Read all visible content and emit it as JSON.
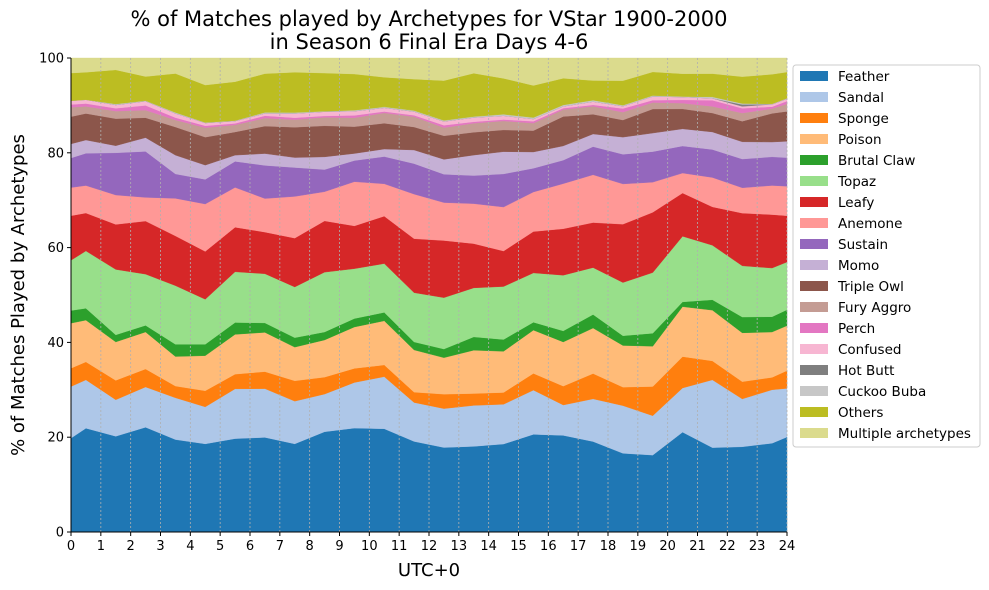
{
  "chart_data": {
    "type": "area",
    "stacked": true,
    "title_line1": "% of Matches played by Archetypes for VStar 1900-2000",
    "title_line2": "in Season 6 Final Era Days 4-6",
    "xlabel": "UTC+0",
    "ylabel": "% of Matches Played by Archetypes",
    "xlim": [
      0,
      24
    ],
    "ylim": [
      0,
      100
    ],
    "x_ticks": [
      "0",
      "1",
      "2",
      "3",
      "4",
      "5",
      "6",
      "7",
      "8",
      "9",
      "10",
      "11",
      "12",
      "13",
      "14",
      "15",
      "16",
      "17",
      "18",
      "19",
      "20",
      "21",
      "22",
      "23",
      "24"
    ],
    "y_ticks": [
      "0",
      "20",
      "40",
      "60",
      "80",
      "100"
    ],
    "grid": "vertical dotted",
    "legend_position": "right, outside plot",
    "x": [
      0,
      0.5,
      1.5,
      2.5,
      3.5,
      4.5,
      5.5,
      6.5,
      7.5,
      8.5,
      9.5,
      10.5,
      11.5,
      12.5,
      13.5,
      14.5,
      15.5,
      16.5,
      17.5,
      18.5,
      19.5,
      20.5,
      21.5,
      22.5,
      23.5,
      24
    ],
    "series": [
      {
        "name": "Feather",
        "color": "#1f77b4",
        "values": [
          20.0,
          21.9,
          20.2,
          22.1,
          19.7,
          18.6,
          19.7,
          20.0,
          18.6,
          21.3,
          22.1,
          22.0,
          19.3,
          17.6,
          18.0,
          18.6,
          21.0,
          21.0,
          19.3,
          17.0,
          16.6,
          21.0,
          17.8,
          17.8,
          18.6,
          20.3
        ]
      },
      {
        "name": "Sandal",
        "color": "#aec7e8",
        "values": [
          11.0,
          10.2,
          7.7,
          8.5,
          8.9,
          7.8,
          10.5,
          10.3,
          9.0,
          8.0,
          9.7,
          11.1,
          8.3,
          8.1,
          8.6,
          8.4,
          9.5,
          6.6,
          9.1,
          10.3,
          8.5,
          9.3,
          14.3,
          10.0,
          11.2,
          10.4
        ]
      },
      {
        "name": "Sponge",
        "color": "#ff7f0e",
        "values": [
          3.9,
          3.8,
          4.1,
          3.8,
          2.5,
          3.4,
          3.1,
          3.6,
          4.3,
          3.6,
          3.0,
          2.5,
          2.2,
          3.0,
          2.5,
          2.5,
          3.6,
          4.1,
          5.4,
          4.0,
          6.3,
          6.6,
          4.0,
          3.6,
          2.6,
          3.8
        ]
      },
      {
        "name": "Poison",
        "color": "#ffbb78",
        "values": [
          9.6,
          8.8,
          8.1,
          7.8,
          6.3,
          7.4,
          8.4,
          8.3,
          7.1,
          7.9,
          8.8,
          9.4,
          9.0,
          7.6,
          9.1,
          8.7,
          9.3,
          9.6,
          9.7,
          9.0,
          8.7,
          10.5,
          10.7,
          10.2,
          9.5,
          9.6
        ]
      },
      {
        "name": "Brutal Claw",
        "color": "#2ca02c",
        "values": [
          2.7,
          2.5,
          1.5,
          1.4,
          2.6,
          2.4,
          2.5,
          2.0,
          2.0,
          1.7,
          1.8,
          1.8,
          1.7,
          1.8,
          2.8,
          2.5,
          1.7,
          2.4,
          2.9,
          2.1,
          2.8,
          1.0,
          2.2,
          3.3,
          3.2,
          3.4
        ]
      },
      {
        "name": "Topaz",
        "color": "#98df8a",
        "values": [
          10.7,
          12.1,
          13.8,
          10.8,
          12.5,
          9.5,
          10.7,
          10.4,
          10.7,
          12.7,
          10.6,
          10.4,
          10.5,
          10.7,
          10.3,
          11.2,
          10.6,
          12.1,
          10.0,
          11.5,
          13.1,
          13.8,
          11.5,
          10.7,
          10.2,
          10.2
        ]
      },
      {
        "name": "Leafy",
        "color": "#d62728",
        "values": [
          9.5,
          8.0,
          9.5,
          11.2,
          10.6,
          10.1,
          9.4,
          8.8,
          10.3,
          10.9,
          9.1,
          10.1,
          11.5,
          11.9,
          9.3,
          7.5,
          8.9,
          10.1,
          9.6,
          12.6,
          13.0,
          9.1,
          8.1,
          11.0,
          11.2,
          9.9
        ]
      },
      {
        "name": "Anemone",
        "color": "#ff9896",
        "values": [
          6.0,
          5.8,
          6.2,
          5.0,
          8.0,
          10.0,
          8.4,
          7.1,
          8.8,
          6.2,
          9.4,
          6.9,
          9.5,
          7.9,
          8.4,
          9.3,
          8.5,
          9.8,
          10.2,
          8.7,
          6.5,
          4.2,
          6.2,
          5.3,
          6.1,
          6.3
        ]
      },
      {
        "name": "Sustain",
        "color": "#9467bd",
        "values": [
          6.3,
          6.8,
          8.9,
          9.7,
          5.2,
          5.2,
          5.5,
          7.0,
          6.1,
          4.7,
          4.5,
          5.8,
          6.5,
          5.9,
          5.9,
          7.0,
          5.1,
          5.1,
          6.0,
          6.4,
          6.6,
          5.7,
          5.9,
          6.0,
          6.0,
          6.1
        ]
      },
      {
        "name": "Momo",
        "color": "#c5b0d5",
        "values": [
          3.0,
          2.8,
          1.5,
          2.9,
          4.0,
          3.0,
          1.3,
          2.5,
          2.1,
          2.7,
          1.5,
          1.6,
          2.9,
          3.1,
          4.3,
          4.7,
          3.5,
          3.1,
          2.7,
          3.7,
          4.0,
          3.6,
          3.7,
          3.6,
          3.1,
          3.5
        ]
      },
      {
        "name": "Triple Owl",
        "color": "#8c564b",
        "values": [
          5.8,
          5.6,
          5.7,
          4.2,
          6.0,
          5.9,
          4.9,
          5.8,
          6.4,
          6.6,
          5.7,
          5.5,
          4.9,
          4.9,
          4.8,
          4.6,
          4.6,
          6.4,
          4.2,
          3.7,
          5.2,
          4.2,
          4.0,
          4.3,
          6.0,
          6.4
        ]
      },
      {
        "name": "Fury Aggro",
        "color": "#c49c94",
        "values": [
          2.0,
          1.5,
          1.6,
          1.6,
          1.5,
          2.0,
          1.5,
          1.7,
          1.6,
          1.8,
          1.9,
          2.2,
          2.2,
          1.7,
          1.9,
          1.9,
          1.6,
          1.5,
          1.7,
          1.7,
          1.4,
          1.2,
          1.4,
          1.7,
          1.0,
          1.6
        ]
      },
      {
        "name": "Perch",
        "color": "#e377c2",
        "values": [
          0.6,
          0.6,
          0.6,
          1.0,
          0.5,
          0.4,
          0.3,
          0.5,
          0.4,
          0.3,
          0.5,
          0.3,
          0.3,
          0.5,
          0.3,
          0.3,
          0.4,
          0.3,
          0.3,
          0.8,
          0.5,
          0.7,
          1.3,
          1.0,
          0.4,
          0.6
        ]
      },
      {
        "name": "Confused",
        "color": "#f7b6d2",
        "values": [
          0.8,
          0.8,
          0.7,
          0.9,
          0.9,
          0.6,
          0.5,
          0.5,
          0.9,
          0.9,
          0.9,
          0.8,
          0.8,
          0.8,
          0.9,
          0.8,
          0.5,
          0.4,
          0.7,
          0.5,
          0.8,
          0.6,
          0.4,
          0.4,
          0.5,
          0.5
        ]
      },
      {
        "name": "Hot Butt",
        "color": "#7f7f7f",
        "values": [
          0.0,
          0.0,
          0.0,
          0.0,
          0.0,
          0.0,
          0.0,
          0.0,
          0.0,
          0.0,
          0.0,
          0.0,
          0.0,
          0.0,
          0.0,
          0.0,
          0.0,
          0.0,
          0.0,
          0.0,
          0.0,
          0.0,
          0.0,
          0.4,
          0.0,
          0.0
        ]
      },
      {
        "name": "Cuckoo Buba",
        "color": "#c7c7c7",
        "values": [
          0.0,
          0.0,
          0.2,
          0.1,
          0.2,
          0.1,
          0.1,
          0.2,
          0.2,
          0.1,
          0.2,
          0.2,
          0.2,
          0.2,
          0.2,
          0.3,
          0.3,
          0.3,
          0.3,
          0.2,
          0.2,
          0.1,
          0.3,
          0.2,
          0.1,
          0.1
        ]
      },
      {
        "name": "Others",
        "color": "#bcbd22",
        "values": [
          5.9,
          5.8,
          7.2,
          5.1,
          8.3,
          7.9,
          8.2,
          8.2,
          8.5,
          8.1,
          7.7,
          6.3,
          6.7,
          8.3,
          9.1,
          7.6,
          6.9,
          5.8,
          4.2,
          5.3,
          5.1,
          4.8,
          4.9,
          5.6,
          6.2,
          5.6
        ]
      },
      {
        "name": "Multiple archetypes",
        "color": "#dbdb8d",
        "values": [
          3.2,
          3.0,
          2.5,
          3.9,
          3.3,
          5.7,
          5.0,
          3.3,
          3.0,
          3.2,
          3.4,
          4.1,
          4.5,
          4.7,
          3.2,
          4.3,
          5.9,
          4.4,
          4.8,
          4.9,
          3.0,
          3.3,
          3.3,
          3.9,
          3.4,
          3.0
        ]
      }
    ]
  }
}
